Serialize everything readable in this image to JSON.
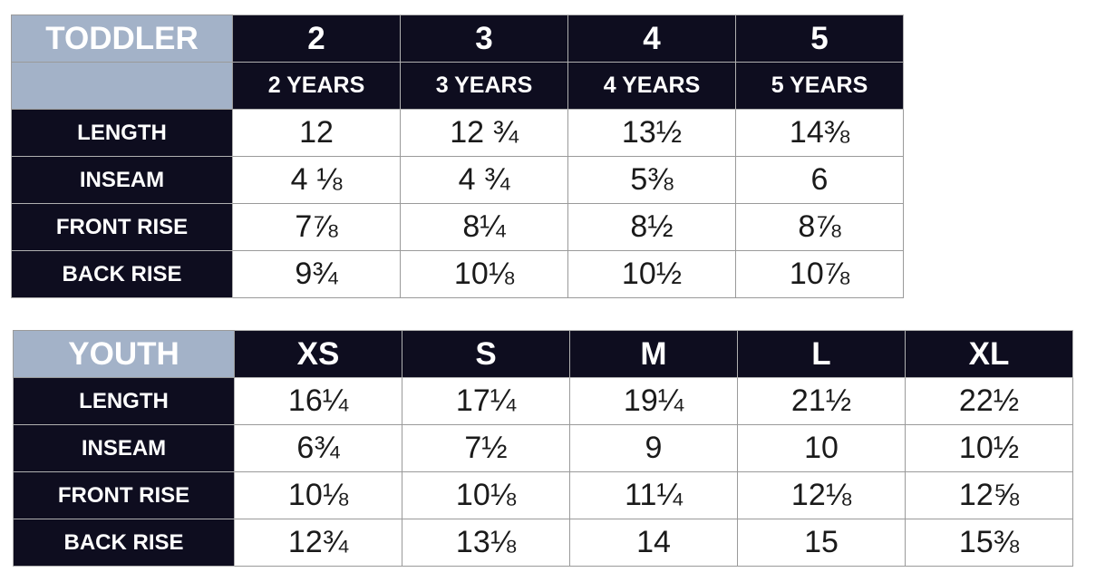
{
  "toddler": {
    "corner_label": "TODDLER",
    "sizes": [
      "2",
      "3",
      "4",
      "5"
    ],
    "years": [
      "2 YEARS",
      "3 YEARS",
      "4 YEARS",
      "5 YEARS"
    ],
    "rows": [
      {
        "label": "LENGTH",
        "values": [
          "12",
          "12 ¾",
          "13½",
          "14⅜"
        ]
      },
      {
        "label": "INSEAM",
        "values": [
          "4 ⅛",
          "4 ¾",
          "5⅜",
          "6"
        ]
      },
      {
        "label": "FRONT RISE",
        "values": [
          "7⅞",
          "8¼",
          "8½",
          "8⅞"
        ]
      },
      {
        "label": "BACK RISE",
        "values": [
          "9¾",
          "10⅛",
          "10½",
          "10⅞"
        ]
      }
    ]
  },
  "youth": {
    "corner_label": "YOUTH",
    "sizes": [
      "XS",
      "S",
      "M",
      "L",
      "XL"
    ],
    "rows": [
      {
        "label": "LENGTH",
        "values": [
          "16¼",
          "17¼",
          "19¼",
          "21½",
          "22½"
        ]
      },
      {
        "label": "INSEAM",
        "values": [
          "6¾",
          "7½",
          "9",
          "10",
          "10½"
        ]
      },
      {
        "label": "FRONT RISE",
        "values": [
          "10⅛",
          "10⅛",
          "11¼",
          "12⅛",
          "12⅝"
        ]
      },
      {
        "label": "BACK RISE",
        "values": [
          "12¾",
          "13⅛",
          "14",
          "15",
          "15⅜"
        ]
      }
    ]
  },
  "colors": {
    "header_navy": "#0e0d1f",
    "corner_blue_gray": "#a3b2c8",
    "cell_white": "#ffffff",
    "grid_gray": "#9a9a9a"
  }
}
